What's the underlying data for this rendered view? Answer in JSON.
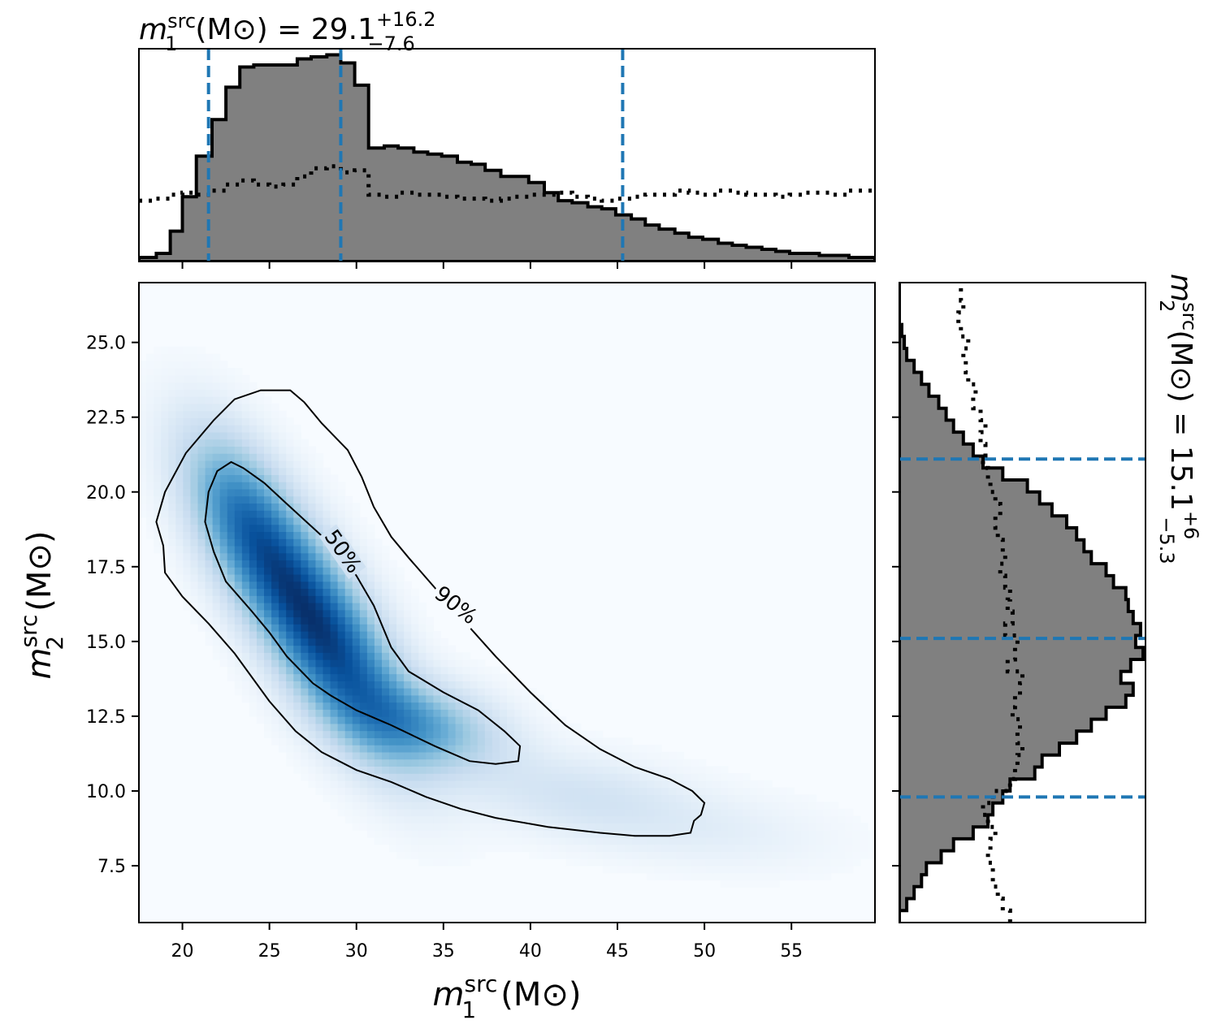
{
  "chart_data": {
    "type": "corner",
    "colors": {
      "hist_fill": "#808080",
      "hist_edge": "#000000",
      "quantile_line": "#1f77b4",
      "density_low": "#f7fbff",
      "density_high": "#08306b",
      "contour": "#000000"
    },
    "x_axis": {
      "label": "m",
      "label_sup": "src",
      "label_sub": "1",
      "label_unit": "(M⊙)",
      "range": [
        17.5,
        59.8
      ],
      "ticks": [
        20,
        25,
        30,
        35,
        40,
        45,
        50,
        55
      ],
      "tick_labels": [
        "20",
        "25",
        "30",
        "35",
        "40",
        "45",
        "50",
        "55"
      ]
    },
    "y_axis": {
      "label": "m",
      "label_sup": "src",
      "label_sub": "2",
      "label_unit": "(M⊙)",
      "range": [
        5.6,
        27.0
      ],
      "ticks": [
        7.5,
        10.0,
        12.5,
        15.0,
        17.5,
        20.0,
        22.5,
        25.0
      ],
      "tick_labels": [
        "7.5",
        "10.0",
        "12.5",
        "15.0",
        "17.5",
        "20.0",
        "22.5",
        "25.0"
      ]
    },
    "top_title": {
      "prefix": "m",
      "sup": "src",
      "sub": "1",
      "unit": "(M⊙) = 29.1",
      "plus": "+16.2",
      "minus": "−7.6"
    },
    "right_title": {
      "prefix": "m",
      "sup": "src",
      "sub": "2",
      "unit": "(M⊙) = 15.1",
      "plus": "+6",
      "minus": "−5.3"
    },
    "m1_quantiles": [
      21.5,
      29.1,
      45.3
    ],
    "m2_quantiles": [
      9.8,
      15.1,
      21.1
    ],
    "m1_hist": {
      "edges": [
        17.5,
        18.5,
        19.3,
        20.0,
        20.8,
        21.7,
        22.5,
        23.3,
        24.1,
        25.0,
        25.8,
        26.6,
        27.4,
        28.3,
        29.1,
        29.9,
        30.7,
        31.6,
        32.4,
        33.3,
        34.1,
        34.9,
        35.8,
        36.6,
        37.4,
        38.3,
        39.1,
        39.9,
        40.8,
        41.6,
        42.4,
        43.3,
        44.1,
        44.9,
        45.8,
        46.6,
        47.4,
        48.3,
        49.1,
        49.9,
        50.8,
        51.6,
        52.4,
        53.3,
        54.1,
        54.9,
        55.8,
        56.6,
        57.4,
        58.3,
        59.8
      ],
      "posterior": [
        0.02,
        0.04,
        0.15,
        0.32,
        0.52,
        0.7,
        0.86,
        0.96,
        0.97,
        0.97,
        0.97,
        1.0,
        1.01,
        1.02,
        0.98,
        0.87,
        0.56,
        0.57,
        0.56,
        0.54,
        0.53,
        0.52,
        0.49,
        0.48,
        0.45,
        0.42,
        0.42,
        0.39,
        0.34,
        0.3,
        0.29,
        0.27,
        0.26,
        0.23,
        0.21,
        0.18,
        0.16,
        0.14,
        0.12,
        0.11,
        0.09,
        0.08,
        0.07,
        0.06,
        0.05,
        0.04,
        0.04,
        0.03,
        0.03,
        0.02
      ],
      "prior": [
        0.3,
        0.31,
        0.33,
        0.34,
        0.33,
        0.35,
        0.38,
        0.4,
        0.38,
        0.37,
        0.38,
        0.42,
        0.46,
        0.47,
        0.44,
        0.45,
        0.33,
        0.32,
        0.34,
        0.33,
        0.33,
        0.32,
        0.31,
        0.31,
        0.3,
        0.31,
        0.32,
        0.33,
        0.33,
        0.34,
        0.32,
        0.31,
        0.3,
        0.31,
        0.32,
        0.33,
        0.33,
        0.35,
        0.34,
        0.33,
        0.35,
        0.34,
        0.33,
        0.33,
        0.32,
        0.33,
        0.34,
        0.34,
        0.33,
        0.35
      ],
      "range": [
        0,
        1.05
      ]
    },
    "m2_hist": {
      "edges": [
        5.6,
        6.0,
        6.4,
        6.8,
        7.2,
        7.6,
        8.0,
        8.4,
        8.8,
        9.2,
        9.6,
        10.0,
        10.4,
        10.8,
        11.2,
        11.6,
        12.0,
        12.4,
        12.8,
        13.2,
        13.6,
        14.0,
        14.4,
        14.8,
        15.2,
        15.6,
        16.0,
        16.4,
        16.8,
        17.2,
        17.6,
        18.0,
        18.4,
        18.8,
        19.2,
        19.6,
        20.0,
        20.4,
        20.8,
        21.2,
        21.6,
        22.0,
        22.4,
        22.8,
        23.2,
        23.6,
        24.0,
        24.4,
        24.8,
        25.2,
        25.6,
        26.0,
        26.4,
        27.0
      ],
      "posterior": [
        0.0,
        0.03,
        0.06,
        0.09,
        0.11,
        0.17,
        0.22,
        0.3,
        0.36,
        0.38,
        0.42,
        0.45,
        0.55,
        0.58,
        0.65,
        0.72,
        0.78,
        0.84,
        0.92,
        0.95,
        0.9,
        0.94,
        0.99,
        0.96,
        0.98,
        0.95,
        0.93,
        0.92,
        0.87,
        0.84,
        0.78,
        0.75,
        0.72,
        0.68,
        0.62,
        0.57,
        0.52,
        0.42,
        0.34,
        0.3,
        0.26,
        0.22,
        0.19,
        0.16,
        0.12,
        0.09,
        0.06,
        0.03,
        0.02,
        0.01,
        0.0,
        0.0,
        0.0
      ],
      "prior": [
        0.45,
        0.42,
        0.4,
        0.38,
        0.38,
        0.36,
        0.37,
        0.39,
        0.36,
        0.34,
        0.38,
        0.45,
        0.47,
        0.48,
        0.5,
        0.48,
        0.49,
        0.46,
        0.47,
        0.49,
        0.5,
        0.44,
        0.47,
        0.48,
        0.43,
        0.46,
        0.44,
        0.45,
        0.43,
        0.41,
        0.43,
        0.42,
        0.4,
        0.39,
        0.41,
        0.39,
        0.37,
        0.36,
        0.34,
        0.35,
        0.33,
        0.35,
        0.33,
        0.3,
        0.31,
        0.28,
        0.27,
        0.26,
        0.28,
        0.25,
        0.24,
        0.26,
        0.25
      ],
      "range": [
        0,
        1.0
      ]
    },
    "density_components": [
      {
        "m1": 28.0,
        "m2": 15.3,
        "s1": 3.2,
        "s2": 2.6,
        "corr": -0.72,
        "w": 1.0
      },
      {
        "m1": 23.5,
        "m2": 19.2,
        "s1": 2.4,
        "s2": 2.0,
        "corr": -0.55,
        "w": 0.55
      },
      {
        "m1": 34.0,
        "m2": 12.2,
        "s1": 3.0,
        "s2": 1.0,
        "corr": -0.3,
        "w": 0.45
      },
      {
        "m1": 43.0,
        "m2": 9.8,
        "s1": 4.5,
        "s2": 1.0,
        "corr": -0.35,
        "w": 0.16
      },
      {
        "m1": 51.5,
        "m2": 8.6,
        "s1": 4.5,
        "s2": 0.9,
        "corr": -0.2,
        "w": 0.06
      }
    ],
    "contour_labels": {
      "c50": "50%",
      "c90": "90%"
    },
    "contour_label_positions": {
      "c50": {
        "m1": 29.2,
        "m2": 18.0,
        "angle_deg": 55
      },
      "c90": {
        "m1": 35.7,
        "m2": 16.2,
        "angle_deg": 38
      }
    },
    "contour_90": [
      [
        18.9,
        18.2
      ],
      [
        18.5,
        19.0
      ],
      [
        19.0,
        20.0
      ],
      [
        20.2,
        21.3
      ],
      [
        21.8,
        22.4
      ],
      [
        23.0,
        23.1
      ],
      [
        24.5,
        23.4
      ],
      [
        26.2,
        23.4
      ],
      [
        27.0,
        23.0
      ],
      [
        28.0,
        22.3
      ],
      [
        29.5,
        21.4
      ],
      [
        30.3,
        20.5
      ],
      [
        31.0,
        19.5
      ],
      [
        32.0,
        18.5
      ],
      [
        33.0,
        17.8
      ],
      [
        34.5,
        16.8
      ],
      [
        36.0,
        15.8
      ],
      [
        38.0,
        14.5
      ],
      [
        40.0,
        13.3
      ],
      [
        42.0,
        12.2
      ],
      [
        44.0,
        11.4
      ],
      [
        46.0,
        10.8
      ],
      [
        48.0,
        10.4
      ],
      [
        49.3,
        10.0
      ],
      [
        50.0,
        9.6
      ],
      [
        49.8,
        9.2
      ],
      [
        49.4,
        9.0
      ],
      [
        49.2,
        8.6
      ],
      [
        48.0,
        8.5
      ],
      [
        46.0,
        8.5
      ],
      [
        44.0,
        8.6
      ],
      [
        41.0,
        8.8
      ],
      [
        38.0,
        9.1
      ],
      [
        36.0,
        9.4
      ],
      [
        34.0,
        9.8
      ],
      [
        32.0,
        10.3
      ],
      [
        30.0,
        10.7
      ],
      [
        28.0,
        11.3
      ],
      [
        26.5,
        12.0
      ],
      [
        25.0,
        13.0
      ],
      [
        23.0,
        14.6
      ],
      [
        21.5,
        15.6
      ],
      [
        20.0,
        16.5
      ],
      [
        19.0,
        17.3
      ],
      [
        18.9,
        18.2
      ]
    ],
    "contour_50": [
      [
        21.3,
        19.0
      ],
      [
        21.5,
        20.0
      ],
      [
        22.0,
        20.7
      ],
      [
        22.8,
        21.0
      ],
      [
        23.5,
        20.8
      ],
      [
        24.7,
        20.3
      ],
      [
        26.0,
        19.6
      ],
      [
        27.5,
        18.8
      ],
      [
        29.0,
        18.0
      ],
      [
        30.0,
        17.2
      ],
      [
        31.0,
        16.2
      ],
      [
        32.0,
        14.8
      ],
      [
        33.0,
        14.0
      ],
      [
        35.0,
        13.3
      ],
      [
        37.0,
        12.7
      ],
      [
        38.5,
        12.0
      ],
      [
        39.4,
        11.5
      ],
      [
        39.3,
        11.0
      ],
      [
        38.0,
        10.9
      ],
      [
        36.5,
        11.0
      ],
      [
        34.5,
        11.5
      ],
      [
        32.0,
        12.2
      ],
      [
        30.0,
        12.7
      ],
      [
        28.5,
        13.2
      ],
      [
        27.5,
        13.6
      ],
      [
        26.0,
        14.5
      ],
      [
        25.0,
        15.3
      ],
      [
        24.0,
        16.0
      ],
      [
        22.5,
        17.0
      ],
      [
        21.8,
        18.0
      ],
      [
        21.3,
        19.0
      ]
    ]
  }
}
